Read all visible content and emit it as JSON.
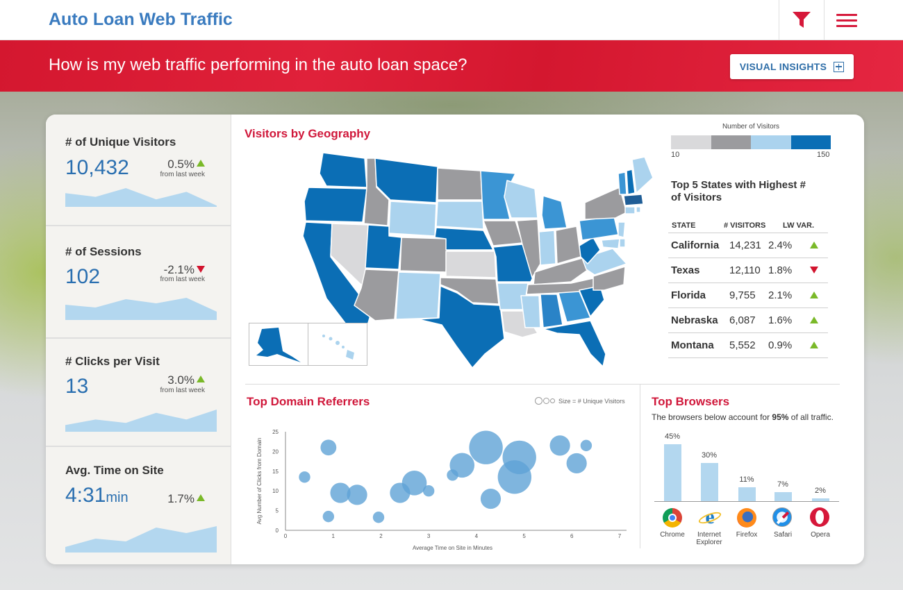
{
  "header": {
    "app_title": "Auto Loan Web Traffic",
    "filter_icon": "filter-icon",
    "menu_icon": "hamburger-menu-icon"
  },
  "banner": {
    "question": "How is my web traffic performing in the auto loan space?",
    "visual_insights_label": "VISUAL INSIGHTS"
  },
  "kpis": [
    {
      "title": "# of Unique Visitors",
      "value": "10,432",
      "change": "0.5%",
      "direction": "up",
      "sub": "from last week",
      "spark": [
        0.55,
        0.4,
        0.75,
        0.3,
        0.6,
        0.05
      ]
    },
    {
      "title": "# of Sessions",
      "value": "102",
      "change": "-2.1%",
      "direction": "down",
      "sub": "from last week",
      "spark": [
        0.55,
        0.45,
        0.75,
        0.6,
        0.8,
        0.3
      ]
    },
    {
      "title": "# Clicks per Visit",
      "value": "13",
      "change": "3.0%",
      "direction": "up",
      "sub": "from last week",
      "spark": [
        0.3,
        0.55,
        0.4,
        0.85,
        0.55,
        1.0
      ]
    },
    {
      "title": "Avg. Time on Site",
      "value": "4:31",
      "unit": "min",
      "change": "1.7%",
      "direction": "up",
      "sub": "",
      "spark": [
        0.2,
        0.5,
        0.4,
        0.9,
        0.7,
        0.95
      ]
    }
  ],
  "geography": {
    "title": "Visitors by Geography",
    "legend_title": "Number of Visitors",
    "legend_min": "10",
    "legend_max": "150",
    "legend_colors": [
      "#d9d9db",
      "#9b9b9e",
      "#abd3ee",
      "#0b6eb5"
    ],
    "top5_title": "Top 5 States with Highest # of Visitors",
    "top5_headers": [
      "STATE",
      "# VISITORS",
      "LW VAR."
    ],
    "top5_rows": [
      {
        "state": "California",
        "visitors": "14,231",
        "var": "2.4%",
        "direction": "up"
      },
      {
        "state": "Texas",
        "visitors": "12,110",
        "var": "1.8%",
        "direction": "down"
      },
      {
        "state": "Florida",
        "visitors": "9,755",
        "var": "2.1%",
        "direction": "up"
      },
      {
        "state": "Nebraska",
        "visitors": "6,087",
        "var": "1.6%",
        "direction": "up"
      },
      {
        "state": "Montana",
        "visitors": "5,552",
        "var": "0.9%",
        "direction": "up"
      }
    ]
  },
  "referrers": {
    "title": "Top Domain Referrers",
    "size_note": "Size = # Unique Visitors"
  },
  "browsers": {
    "title": "Top Browsers",
    "subtitle_pre": "The browsers below account for ",
    "subtitle_bold": "95%",
    "subtitle_post": " of all traffic.",
    "items": [
      {
        "name": "Chrome",
        "icon": "chrome-icon"
      },
      {
        "name": "Internet Explorer",
        "icon": "internet-explorer-icon"
      },
      {
        "name": "Firefox",
        "icon": "firefox-icon"
      },
      {
        "name": "Safari",
        "icon": "safari-icon"
      },
      {
        "name": "Opera",
        "icon": "opera-icon"
      }
    ]
  },
  "chart_data": [
    {
      "type": "scatter",
      "title": "Top Domain Referrers",
      "xlabel": "Average Time on Site in Minutes",
      "ylabel": "Avg Number of Clicks from Domain",
      "xlim": [
        0,
        7
      ],
      "ylim": [
        0,
        25
      ],
      "xticks": [
        "0",
        "1",
        "2",
        "3",
        "4",
        "5",
        "6",
        "7"
      ],
      "yticks": [
        "0",
        "5",
        "10",
        "15",
        "20",
        "25"
      ],
      "points": [
        {
          "x": 0.4,
          "y": 13.5,
          "size": 1
        },
        {
          "x": 0.9,
          "y": 21.0,
          "size": 2
        },
        {
          "x": 0.9,
          "y": 3.5,
          "size": 1
        },
        {
          "x": 1.15,
          "y": 9.5,
          "size": 3
        },
        {
          "x": 1.5,
          "y": 9.0,
          "size": 3
        },
        {
          "x": 1.95,
          "y": 3.3,
          "size": 1
        },
        {
          "x": 2.4,
          "y": 9.5,
          "size": 3
        },
        {
          "x": 2.7,
          "y": 12.0,
          "size": 4
        },
        {
          "x": 3.0,
          "y": 10.0,
          "size": 1
        },
        {
          "x": 3.5,
          "y": 14.0,
          "size": 1
        },
        {
          "x": 3.7,
          "y": 16.5,
          "size": 4
        },
        {
          "x": 4.2,
          "y": 21.0,
          "size": 6
        },
        {
          "x": 4.3,
          "y": 8.0,
          "size": 3
        },
        {
          "x": 4.8,
          "y": 13.5,
          "size": 6
        },
        {
          "x": 4.9,
          "y": 18.5,
          "size": 6
        },
        {
          "x": 5.75,
          "y": 21.5,
          "size": 3
        },
        {
          "x": 6.1,
          "y": 17.0,
          "size": 3
        },
        {
          "x": 6.3,
          "y": 21.5,
          "size": 1
        }
      ]
    },
    {
      "type": "bar",
      "title": "Top Browsers",
      "categories": [
        "Chrome",
        "Internet Explorer",
        "Firefox",
        "Safari",
        "Opera"
      ],
      "values": [
        45,
        30,
        11,
        7,
        2
      ],
      "labels": [
        "45%",
        "30%",
        "11%",
        "7%",
        "2%"
      ]
    }
  ]
}
